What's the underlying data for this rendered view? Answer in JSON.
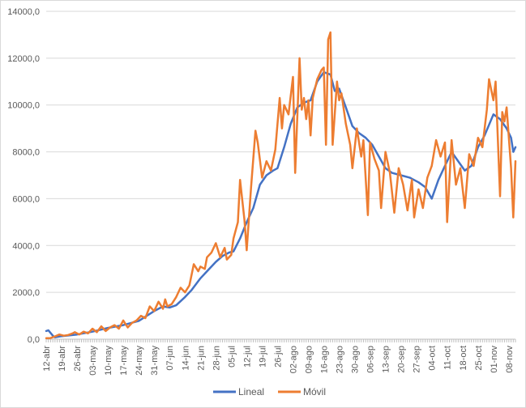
{
  "chart_data": {
    "type": "line",
    "title": "",
    "xlabel": "",
    "ylabel": "",
    "ylim": [
      0,
      14000
    ],
    "yticks": [
      0,
      2000,
      4000,
      6000,
      8000,
      10000,
      12000,
      14000
    ],
    "ytick_labels": [
      "0,0",
      "2000,0",
      "4000,0",
      "6000,0",
      "8000,0",
      "10000,0",
      "12000,0",
      "14000,0"
    ],
    "x_start": "2020-04-12",
    "x_end": "2020-11-11",
    "xticks": [
      "2020-04-12",
      "2020-04-19",
      "2020-04-26",
      "2020-05-03",
      "2020-05-10",
      "2020-05-17",
      "2020-05-24",
      "2020-05-31",
      "2020-06-07",
      "2020-06-14",
      "2020-06-21",
      "2020-06-28",
      "2020-07-05",
      "2020-07-12",
      "2020-07-19",
      "2020-07-26",
      "2020-08-02",
      "2020-08-09",
      "2020-08-16",
      "2020-08-23",
      "2020-08-30",
      "2020-09-06",
      "2020-09-13",
      "2020-09-20",
      "2020-09-27",
      "2020-10-04",
      "2020-10-11",
      "2020-10-18",
      "2020-10-25",
      "2020-11-01",
      "2020-11-08"
    ],
    "xtick_labels": [
      "12-abr",
      "19-abr",
      "26-abr",
      "03-may",
      "10-may",
      "17-may",
      "24-may",
      "31-may",
      "07-jun",
      "14-jun",
      "21-jun",
      "28-jun",
      "05-jul",
      "12-jul",
      "19-jul",
      "26-jul",
      "02-ago",
      "09-ago",
      "16-ago",
      "23-ago",
      "30-ago",
      "06-sep",
      "13-sep",
      "20-sep",
      "27-sep",
      "04-oct",
      "11-oct",
      "18-oct",
      "25-oct",
      "01-nov",
      "08-nov"
    ],
    "grid": "horizontal",
    "legend_position": "bottom",
    "series": [
      {
        "name": "Lineal",
        "color": "#4472c4",
        "points": [
          [
            "2020-04-12",
            350
          ],
          [
            "2020-04-13",
            380
          ],
          [
            "2020-04-15",
            150
          ],
          [
            "2020-04-16",
            80
          ],
          [
            "2020-04-19",
            130
          ],
          [
            "2020-04-26",
            200
          ],
          [
            "2020-05-03",
            320
          ],
          [
            "2020-05-10",
            480
          ],
          [
            "2020-05-17",
            600
          ],
          [
            "2020-05-24",
            780
          ],
          [
            "2020-05-31",
            1200
          ],
          [
            "2020-06-04",
            1400
          ],
          [
            "2020-06-07",
            1350
          ],
          [
            "2020-06-10",
            1450
          ],
          [
            "2020-06-14",
            1800
          ],
          [
            "2020-06-17",
            2100
          ],
          [
            "2020-06-21",
            2600
          ],
          [
            "2020-06-24",
            2900
          ],
          [
            "2020-06-28",
            3300
          ],
          [
            "2020-07-01",
            3550
          ],
          [
            "2020-07-04",
            3700
          ],
          [
            "2020-07-06",
            3750
          ],
          [
            "2020-07-09",
            4300
          ],
          [
            "2020-07-12",
            5000
          ],
          [
            "2020-07-15",
            5600
          ],
          [
            "2020-07-18",
            6600
          ],
          [
            "2020-07-21",
            7000
          ],
          [
            "2020-07-24",
            7200
          ],
          [
            "2020-07-26",
            7300
          ],
          [
            "2020-07-29",
            8200
          ],
          [
            "2020-08-01",
            9200
          ],
          [
            "2020-08-04",
            9900
          ],
          [
            "2020-08-07",
            10100
          ],
          [
            "2020-08-10",
            10200
          ],
          [
            "2020-08-13",
            11000
          ],
          [
            "2020-08-16",
            11400
          ],
          [
            "2020-08-19",
            11300
          ],
          [
            "2020-08-21",
            10600
          ],
          [
            "2020-08-23",
            10700
          ],
          [
            "2020-08-26",
            9900
          ],
          [
            "2020-08-29",
            9100
          ],
          [
            "2020-09-01",
            8800
          ],
          [
            "2020-09-04",
            8600
          ],
          [
            "2020-09-07",
            8300
          ],
          [
            "2020-09-10",
            7800
          ],
          [
            "2020-09-13",
            7300
          ],
          [
            "2020-09-16",
            7100
          ],
          [
            "2020-09-20",
            7000
          ],
          [
            "2020-09-24",
            6900
          ],
          [
            "2020-09-28",
            6700
          ],
          [
            "2020-10-01",
            6500
          ],
          [
            "2020-10-04",
            6000
          ],
          [
            "2020-10-07",
            6800
          ],
          [
            "2020-10-10",
            7400
          ],
          [
            "2020-10-13",
            8000
          ],
          [
            "2020-10-16",
            7600
          ],
          [
            "2020-10-19",
            7200
          ],
          [
            "2020-10-22",
            7400
          ],
          [
            "2020-10-25",
            8200
          ],
          [
            "2020-10-28",
            8700
          ],
          [
            "2020-11-01",
            9600
          ],
          [
            "2020-11-04",
            9400
          ],
          [
            "2020-11-07",
            9000
          ],
          [
            "2020-11-09",
            8600
          ],
          [
            "2020-11-10",
            8000
          ],
          [
            "2020-11-11",
            8200
          ]
        ]
      },
      {
        "name": "Móvil",
        "color": "#ed7d31",
        "points": [
          [
            "2020-04-12",
            40
          ],
          [
            "2020-04-14",
            50
          ],
          [
            "2020-04-16",
            120
          ],
          [
            "2020-04-18",
            200
          ],
          [
            "2020-04-20",
            150
          ],
          [
            "2020-04-22",
            180
          ],
          [
            "2020-04-24",
            250
          ],
          [
            "2020-04-25",
            300
          ],
          [
            "2020-04-27",
            200
          ],
          [
            "2020-04-29",
            320
          ],
          [
            "2020-05-01",
            250
          ],
          [
            "2020-05-03",
            450
          ],
          [
            "2020-05-05",
            300
          ],
          [
            "2020-05-07",
            550
          ],
          [
            "2020-05-09",
            350
          ],
          [
            "2020-05-11",
            500
          ],
          [
            "2020-05-13",
            600
          ],
          [
            "2020-05-15",
            450
          ],
          [
            "2020-05-17",
            800
          ],
          [
            "2020-05-19",
            500
          ],
          [
            "2020-05-21",
            700
          ],
          [
            "2020-05-23",
            800
          ],
          [
            "2020-05-25",
            1000
          ],
          [
            "2020-05-27",
            900
          ],
          [
            "2020-05-29",
            1400
          ],
          [
            "2020-05-31",
            1200
          ],
          [
            "2020-06-02",
            1600
          ],
          [
            "2020-06-04",
            1300
          ],
          [
            "2020-06-05",
            1700
          ],
          [
            "2020-06-06",
            1400
          ],
          [
            "2020-06-08",
            1500
          ],
          [
            "2020-06-10",
            1800
          ],
          [
            "2020-06-12",
            2200
          ],
          [
            "2020-06-14",
            2000
          ],
          [
            "2020-06-16",
            2300
          ],
          [
            "2020-06-18",
            3200
          ],
          [
            "2020-06-20",
            2900
          ],
          [
            "2020-06-21",
            3100
          ],
          [
            "2020-06-23",
            3000
          ],
          [
            "2020-06-24",
            3500
          ],
          [
            "2020-06-26",
            3700
          ],
          [
            "2020-06-28",
            4100
          ],
          [
            "2020-06-30",
            3500
          ],
          [
            "2020-07-02",
            3900
          ],
          [
            "2020-07-03",
            3400
          ],
          [
            "2020-07-05",
            3600
          ],
          [
            "2020-07-06",
            4300
          ],
          [
            "2020-07-08",
            5000
          ],
          [
            "2020-07-09",
            6800
          ],
          [
            "2020-07-11",
            5100
          ],
          [
            "2020-07-12",
            3800
          ],
          [
            "2020-07-14",
            6500
          ],
          [
            "2020-07-16",
            8900
          ],
          [
            "2020-07-17",
            8400
          ],
          [
            "2020-07-19",
            6900
          ],
          [
            "2020-07-21",
            7600
          ],
          [
            "2020-07-23",
            7200
          ],
          [
            "2020-07-25",
            8100
          ],
          [
            "2020-07-27",
            10300
          ],
          [
            "2020-07-28",
            9000
          ],
          [
            "2020-07-29",
            10000
          ],
          [
            "2020-07-31",
            9600
          ],
          [
            "2020-08-02",
            11200
          ],
          [
            "2020-08-03",
            7100
          ],
          [
            "2020-08-05",
            12000
          ],
          [
            "2020-08-06",
            9800
          ],
          [
            "2020-08-07",
            10300
          ],
          [
            "2020-08-08",
            9400
          ],
          [
            "2020-08-09",
            10200
          ],
          [
            "2020-08-10",
            8700
          ],
          [
            "2020-08-11",
            10300
          ],
          [
            "2020-08-13",
            11100
          ],
          [
            "2020-08-15",
            11500
          ],
          [
            "2020-08-16",
            11600
          ],
          [
            "2020-08-17",
            8300
          ],
          [
            "2020-08-18",
            12800
          ],
          [
            "2020-08-19",
            13100
          ],
          [
            "2020-08-20",
            8300
          ],
          [
            "2020-08-22",
            11000
          ],
          [
            "2020-08-23",
            10200
          ],
          [
            "2020-08-24",
            10500
          ],
          [
            "2020-08-26",
            9200
          ],
          [
            "2020-08-28",
            8300
          ],
          [
            "2020-08-29",
            7300
          ],
          [
            "2020-08-31",
            9000
          ],
          [
            "2020-09-02",
            7800
          ],
          [
            "2020-09-03",
            8500
          ],
          [
            "2020-09-05",
            5300
          ],
          [
            "2020-09-06",
            8400
          ],
          [
            "2020-09-08",
            7700
          ],
          [
            "2020-09-10",
            7200
          ],
          [
            "2020-09-11",
            5600
          ],
          [
            "2020-09-13",
            8000
          ],
          [
            "2020-09-15",
            7100
          ],
          [
            "2020-09-17",
            5400
          ],
          [
            "2020-09-19",
            7300
          ],
          [
            "2020-09-21",
            6600
          ],
          [
            "2020-09-23",
            5500
          ],
          [
            "2020-09-25",
            6800
          ],
          [
            "2020-09-26",
            5200
          ],
          [
            "2020-09-28",
            6400
          ],
          [
            "2020-09-30",
            5600
          ],
          [
            "2020-10-02",
            6900
          ],
          [
            "2020-10-04",
            7400
          ],
          [
            "2020-10-06",
            8500
          ],
          [
            "2020-10-08",
            7800
          ],
          [
            "2020-10-10",
            8400
          ],
          [
            "2020-10-11",
            5000
          ],
          [
            "2020-10-13",
            8500
          ],
          [
            "2020-10-15",
            6600
          ],
          [
            "2020-10-17",
            7300
          ],
          [
            "2020-10-19",
            5600
          ],
          [
            "2020-10-21",
            7900
          ],
          [
            "2020-10-23",
            7400
          ],
          [
            "2020-10-25",
            8600
          ],
          [
            "2020-10-27",
            8200
          ],
          [
            "2020-10-29",
            9800
          ],
          [
            "2020-10-30",
            11100
          ],
          [
            "2020-11-01",
            10200
          ],
          [
            "2020-11-02",
            11000
          ],
          [
            "2020-11-04",
            6100
          ],
          [
            "2020-11-05",
            9700
          ],
          [
            "2020-11-06",
            9300
          ],
          [
            "2020-11-07",
            9900
          ],
          [
            "2020-11-09",
            7300
          ],
          [
            "2020-11-10",
            5200
          ],
          [
            "2020-11-11",
            7600
          ]
        ]
      }
    ]
  }
}
